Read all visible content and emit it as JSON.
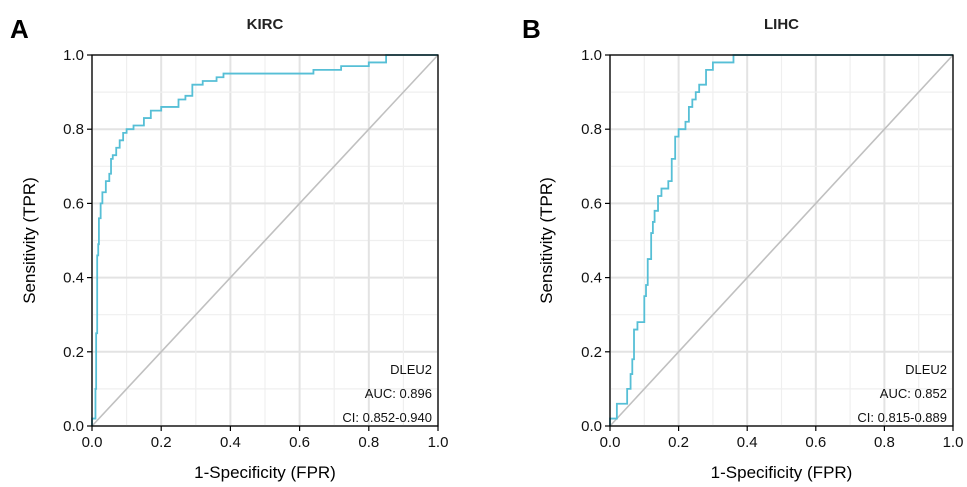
{
  "chart_data": [
    {
      "panel_label": "A",
      "type": "line",
      "title": "KIRC",
      "xlabel": "1-Specificity (FPR)",
      "ylabel": "Sensitivity (TPR)",
      "xlim": [
        0,
        1
      ],
      "ylim": [
        0,
        1
      ],
      "xticks": [
        "0.0",
        "0.2",
        "0.4",
        "0.6",
        "0.8",
        "1.0"
      ],
      "yticks": [
        "0.0",
        "0.2",
        "0.4",
        "0.6",
        "0.8",
        "1.0"
      ],
      "grid": true,
      "line_color": "#56bfd6",
      "diagonal_color": "#c0c0c0",
      "annotations": [
        "DLEU2",
        "AUC: 0.896",
        "CI: 0.852-0.940"
      ],
      "series": [
        {
          "x": [
            0.0,
            0.0,
            0.01,
            0.01,
            0.012,
            0.012,
            0.015,
            0.015,
            0.018,
            0.018,
            0.02,
            0.02,
            0.025,
            0.025,
            0.03,
            0.03,
            0.04,
            0.04,
            0.05,
            0.05,
            0.055,
            0.055,
            0.06,
            0.06,
            0.07,
            0.07,
            0.08,
            0.08,
            0.09,
            0.09,
            0.1,
            0.1,
            0.12,
            0.12,
            0.15,
            0.15,
            0.17,
            0.17,
            0.2,
            0.2,
            0.25,
            0.25,
            0.27,
            0.27,
            0.29,
            0.29,
            0.32,
            0.32,
            0.36,
            0.36,
            0.38,
            0.38,
            0.64,
            0.64,
            0.72,
            0.72,
            0.8,
            0.8,
            0.85,
            0.85,
            0.88,
            0.88,
            1.0
          ],
          "y": [
            0.0,
            0.02,
            0.02,
            0.1,
            0.1,
            0.25,
            0.25,
            0.46,
            0.46,
            0.49,
            0.49,
            0.56,
            0.56,
            0.6,
            0.6,
            0.63,
            0.63,
            0.66,
            0.66,
            0.68,
            0.68,
            0.72,
            0.72,
            0.73,
            0.73,
            0.75,
            0.75,
            0.77,
            0.77,
            0.79,
            0.79,
            0.8,
            0.8,
            0.81,
            0.81,
            0.83,
            0.83,
            0.85,
            0.85,
            0.86,
            0.86,
            0.88,
            0.88,
            0.89,
            0.89,
            0.92,
            0.92,
            0.93,
            0.93,
            0.94,
            0.94,
            0.95,
            0.95,
            0.96,
            0.96,
            0.97,
            0.97,
            0.98,
            0.98,
            1.0,
            1.0,
            1.0,
            1.0
          ]
        }
      ]
    },
    {
      "panel_label": "B",
      "type": "line",
      "title": "LIHC",
      "xlabel": "1-Specificity (FPR)",
      "ylabel": "Sensitivity (TPR)",
      "xlim": [
        0,
        1
      ],
      "ylim": [
        0,
        1
      ],
      "xticks": [
        "0.0",
        "0.2",
        "0.4",
        "0.6",
        "0.8",
        "1.0"
      ],
      "yticks": [
        "0.0",
        "0.2",
        "0.4",
        "0.6",
        "0.8",
        "1.0"
      ],
      "grid": true,
      "line_color": "#56bfd6",
      "diagonal_color": "#c0c0c0",
      "annotations": [
        "DLEU2",
        "AUC: 0.852",
        "CI: 0.815-0.889"
      ],
      "series": [
        {
          "x": [
            0.0,
            0.0,
            0.02,
            0.02,
            0.05,
            0.05,
            0.06,
            0.06,
            0.065,
            0.065,
            0.07,
            0.07,
            0.08,
            0.08,
            0.1,
            0.1,
            0.105,
            0.105,
            0.11,
            0.11,
            0.12,
            0.12,
            0.125,
            0.125,
            0.13,
            0.13,
            0.14,
            0.14,
            0.15,
            0.15,
            0.17,
            0.17,
            0.18,
            0.18,
            0.19,
            0.19,
            0.2,
            0.2,
            0.22,
            0.22,
            0.23,
            0.23,
            0.24,
            0.24,
            0.25,
            0.25,
            0.26,
            0.26,
            0.28,
            0.28,
            0.3,
            0.3,
            0.31,
            0.31,
            0.36,
            0.36,
            1.0
          ],
          "y": [
            0.0,
            0.02,
            0.02,
            0.06,
            0.06,
            0.1,
            0.1,
            0.14,
            0.14,
            0.18,
            0.18,
            0.26,
            0.26,
            0.28,
            0.28,
            0.35,
            0.35,
            0.38,
            0.38,
            0.45,
            0.45,
            0.52,
            0.52,
            0.55,
            0.55,
            0.58,
            0.58,
            0.62,
            0.62,
            0.64,
            0.64,
            0.66,
            0.66,
            0.72,
            0.72,
            0.78,
            0.78,
            0.8,
            0.8,
            0.82,
            0.82,
            0.86,
            0.86,
            0.88,
            0.88,
            0.9,
            0.9,
            0.92,
            0.92,
            0.96,
            0.96,
            0.98,
            0.98,
            0.98,
            0.98,
            1.0,
            1.0
          ]
        }
      ]
    }
  ]
}
